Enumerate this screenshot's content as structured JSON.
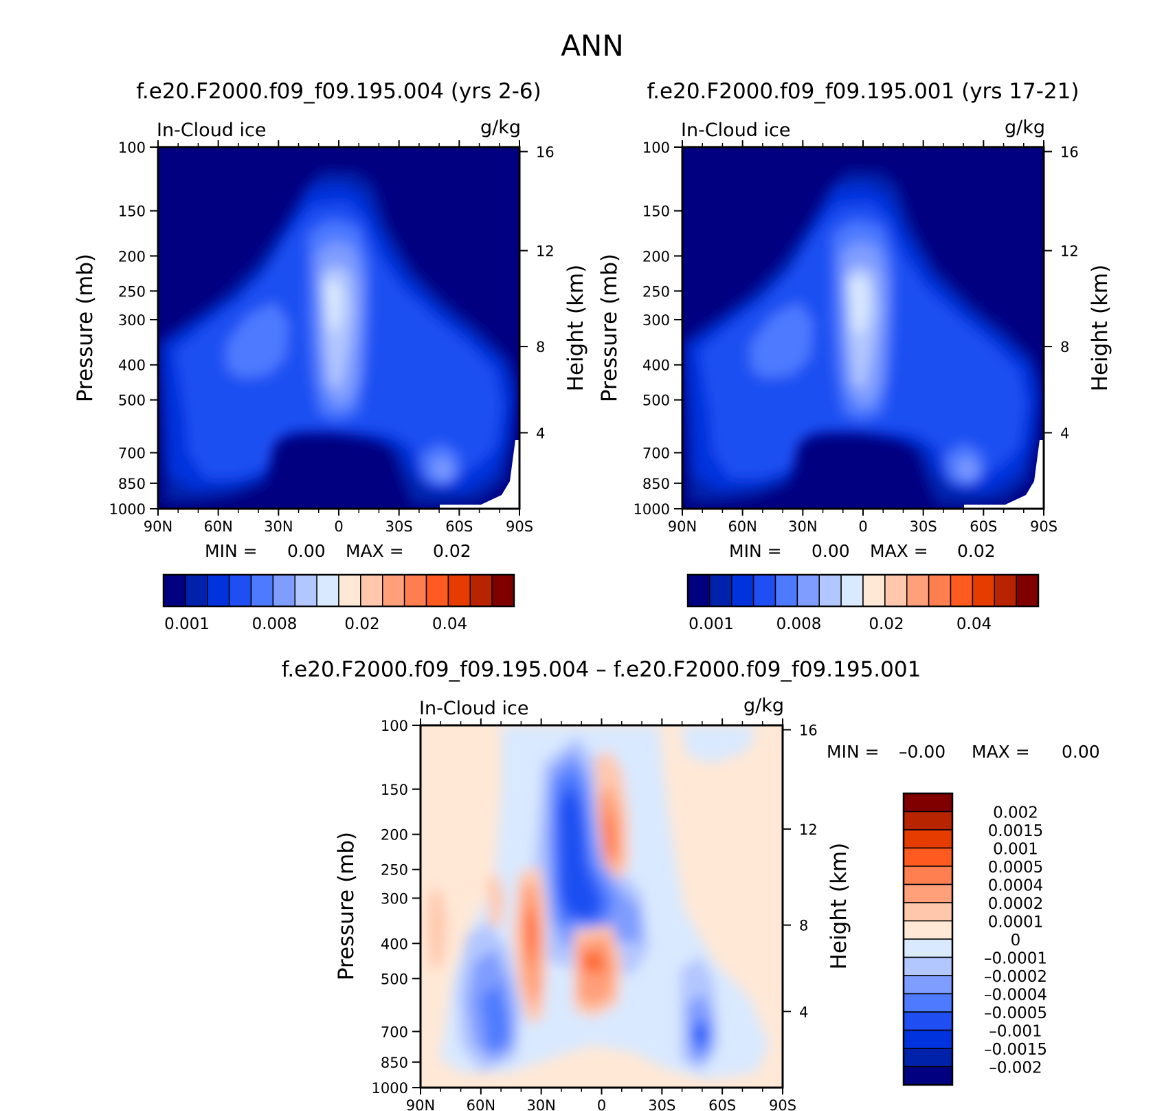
{
  "figure": {
    "title": "ANN"
  },
  "colors": {
    "abs_levels": [
      "#000080",
      "#0022aa",
      "#0033dd",
      "#1f4ff2",
      "#4d7aff",
      "#7f9cff",
      "#b2c6ff",
      "#d9e9ff",
      "#ffe8d6",
      "#ffc8ad",
      "#ffa07a",
      "#ff7f50",
      "#ff5a1f",
      "#e63c00",
      "#b82300",
      "#800000"
    ],
    "diff_levels": [
      "#000080",
      "#0022aa",
      "#0033dd",
      "#1f4ff2",
      "#4d7aff",
      "#7f9cff",
      "#b2c6ff",
      "#d9e9ff",
      "#ffe8d6",
      "#ffc8ad",
      "#ffa07a",
      "#ff7f50",
      "#ff5a1f",
      "#e63c00",
      "#b82300",
      "#800000"
    ]
  },
  "chart_data": [
    {
      "type": "heatmap",
      "title": "f.e20.F2000.f09_f09.195.004 (yrs 2-6)",
      "variable": "In-Cloud ice",
      "units": "g/kg",
      "ylabel": "Pressure (mb)",
      "ylabel2": "Height (km)",
      "x_ticks": [
        "90N",
        "60N",
        "30N",
        "0",
        "30S",
        "60S",
        "90S"
      ],
      "y_ticks": [
        100,
        150,
        200,
        250,
        300,
        400,
        500,
        700,
        850,
        1000
      ],
      "y2_ticks": [
        16,
        12,
        8,
        4
      ],
      "y_scale": "log",
      "min_label": "MIN =",
      "min_value": "0.00",
      "max_label": "MAX =",
      "max_value": "0.02",
      "colorbar_labels": [
        "0.001",
        "0.008",
        "0.02",
        "0.04"
      ],
      "features": [
        {
          "lat": 5,
          "p": 270,
          "peak": "0.02",
          "desc": "tropical upper troposphere maximum"
        },
        {
          "lat": 42,
          "p": 380,
          "peak": "0.008",
          "desc": "northern midlatitude"
        },
        {
          "lat": -57,
          "p": 780,
          "peak": "0.008",
          "desc": "southern high-latitude lower troposphere"
        }
      ]
    },
    {
      "type": "heatmap",
      "title": "f.e20.F2000.f09_f09.195.001 (yrs 17-21)",
      "variable": "In-Cloud ice",
      "units": "g/kg",
      "ylabel": "Pressure (mb)",
      "ylabel2": "Height (km)",
      "x_ticks": [
        "90N",
        "60N",
        "30N",
        "0",
        "30S",
        "60S",
        "90S"
      ],
      "y_ticks": [
        100,
        150,
        200,
        250,
        300,
        400,
        500,
        700,
        850,
        1000
      ],
      "y2_ticks": [
        16,
        12,
        8,
        4
      ],
      "y_scale": "log",
      "min_label": "MIN =",
      "min_value": "0.00",
      "max_label": "MAX =",
      "max_value": "0.02",
      "colorbar_labels": [
        "0.001",
        "0.008",
        "0.02",
        "0.04"
      ],
      "features": [
        {
          "lat": 6,
          "p": 270,
          "peak": "0.02",
          "desc": "tropical upper troposphere maximum"
        },
        {
          "lat": 42,
          "p": 380,
          "peak": "0.008",
          "desc": "northern midlatitude"
        },
        {
          "lat": -57,
          "p": 780,
          "peak": "0.008",
          "desc": "southern high-latitude lower troposphere"
        }
      ]
    },
    {
      "type": "heatmap",
      "title": "f.e20.F2000.f09_f09.195.004 – f.e20.F2000.f09_f09.195.001",
      "variable": "In-Cloud ice",
      "units": "g/kg",
      "ylabel": "Pressure (mb)",
      "ylabel2": "Height (km)",
      "x_ticks": [
        "90N",
        "60N",
        "30N",
        "0",
        "30S",
        "60S",
        "90S"
      ],
      "y_ticks": [
        100,
        150,
        200,
        250,
        300,
        400,
        500,
        700,
        850,
        1000
      ],
      "y2_ticks": [
        16,
        12,
        8,
        4
      ],
      "y_scale": "log",
      "min_label": "MIN =",
      "min_value": "–0.00",
      "max_label": "MAX =",
      "max_value": "0.00",
      "colorbar_labels": [
        "0.002",
        "0.0015",
        "0.001",
        "0.0005",
        "0.0004",
        "0.0002",
        "0.0001",
        "0",
        "–0.0001",
        "–0.0002",
        "–0.0004",
        "–0.0005",
        "–0.001",
        "–0.0015",
        "–0.002"
      ],
      "features": [
        {
          "lat": 18,
          "p": 300,
          "value": -0.0015,
          "desc": "negative maximum"
        },
        {
          "lat": 2,
          "p": 220,
          "value": 0.0005,
          "desc": "positive upper"
        },
        {
          "lat": 36,
          "p": 380,
          "value": 0.001,
          "desc": "positive midlatitude column"
        },
        {
          "lat": 10,
          "p": 460,
          "value": 0.001,
          "desc": "positive mid-level tropics"
        },
        {
          "lat": 50,
          "p": 660,
          "value": -0.0005,
          "desc": "negative lower troposphere"
        },
        {
          "lat": -48,
          "p": 780,
          "value": -0.001,
          "desc": "negative southern lower troposphere"
        }
      ]
    }
  ]
}
